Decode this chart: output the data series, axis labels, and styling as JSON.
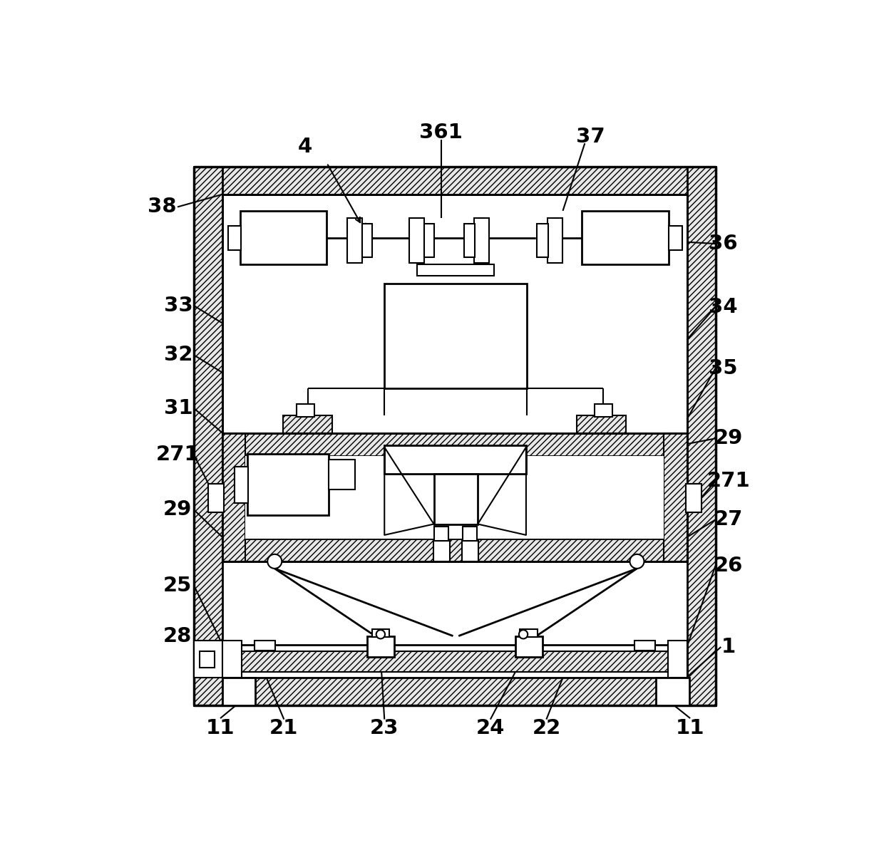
{
  "fig_width": 12.4,
  "fig_height": 12.14,
  "bg_color": "#ffffff"
}
